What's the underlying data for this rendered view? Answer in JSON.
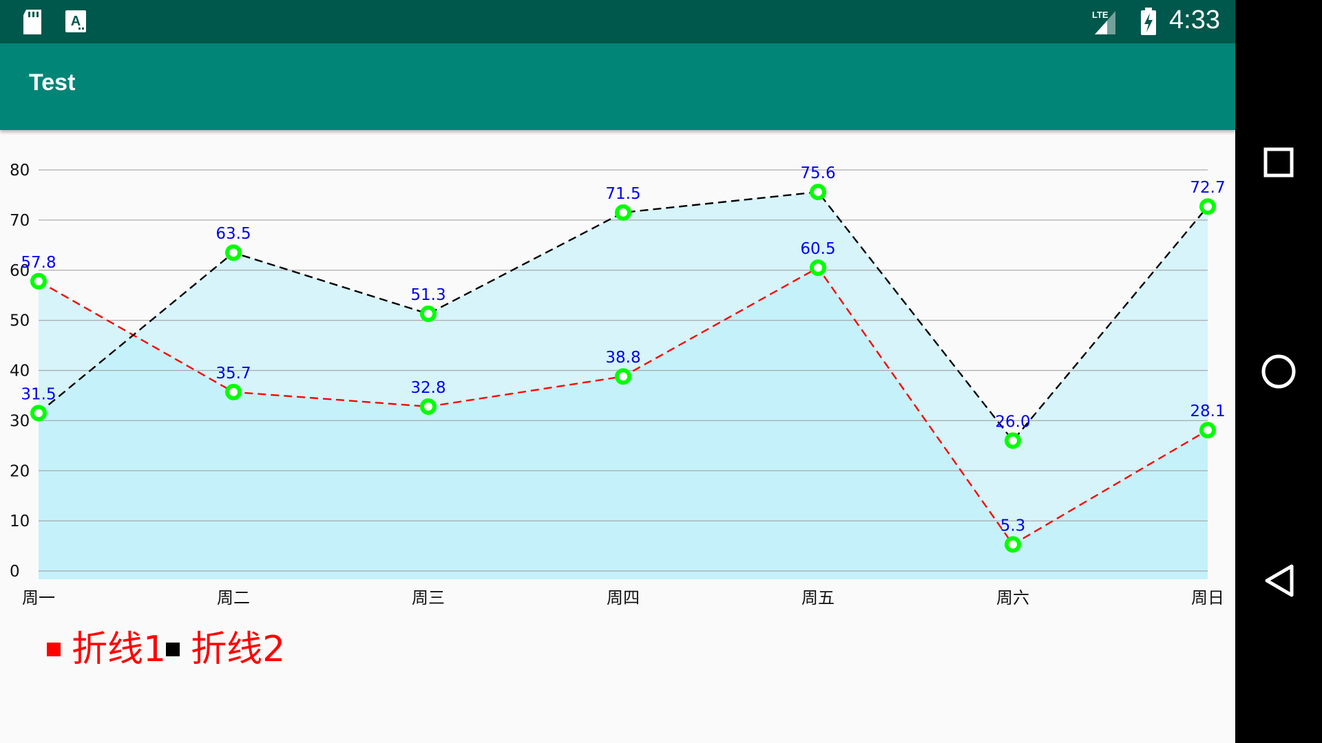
{
  "status_bar": {
    "time": "4:33",
    "network": "LTE",
    "icons": [
      "sd-card-icon",
      "accessibility-a-icon",
      "lte-signal-icon",
      "battery-charging-icon"
    ]
  },
  "app": {
    "title": "Test"
  },
  "colors": {
    "status_bar": "#00574b",
    "app_bar": "#008577",
    "area_fill": "#b8eefa",
    "point_ring": "#00ff00",
    "value_label": "#0000ee",
    "series1": "#ff0000",
    "series2": "#000000"
  },
  "chart_data": {
    "type": "line",
    "x": [
      "周一",
      "周二",
      "周三",
      "周四",
      "周五",
      "周六",
      "周日"
    ],
    "y_ticks": [
      "0",
      "10",
      "20",
      "30",
      "40",
      "50",
      "60",
      "70",
      "80"
    ],
    "ylim": [
      0,
      80
    ],
    "grid": true,
    "area_fill": true,
    "series": [
      {
        "name": "折线1",
        "color": "#ff0000",
        "values": [
          57.8,
          35.7,
          32.8,
          38.8,
          60.5,
          5.3,
          28.1
        ],
        "labels": [
          "57.8",
          "35.7",
          "32.8",
          "38.8",
          "60.5",
          "5.3",
          "28.1"
        ]
      },
      {
        "name": "折线2",
        "color": "#000000",
        "values": [
          31.5,
          63.5,
          51.3,
          71.5,
          75.6,
          26.0,
          72.7
        ],
        "labels": [
          "31.5",
          "63.5",
          "51.3",
          "71.5",
          "75.6",
          "26.0",
          "72.7"
        ]
      }
    ]
  },
  "legend": {
    "placement": "bottom-left",
    "items": [
      {
        "label": "折线1",
        "swatch": "#ff0000"
      },
      {
        "label": "折线2",
        "swatch": "#000000"
      }
    ]
  },
  "nav_bar": {
    "buttons": [
      "recents-square-icon",
      "home-circle-icon",
      "back-triangle-icon"
    ]
  }
}
